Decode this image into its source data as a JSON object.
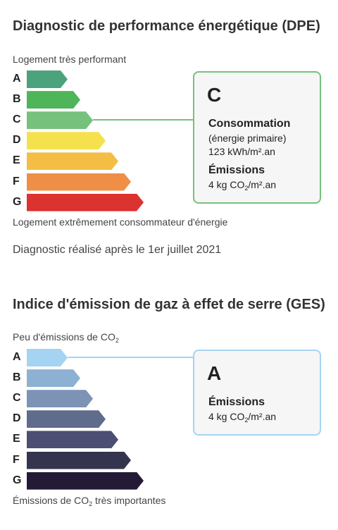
{
  "dpe": {
    "title": "Diagnostic de performance énergétique (DPE)",
    "top_label": "Logement très performant",
    "bottom_label": "Logement extrêmement consommateur d'énergie",
    "classes": [
      "A",
      "B",
      "C",
      "D",
      "E",
      "F",
      "G"
    ],
    "colors": [
      "#4aa37c",
      "#4fb559",
      "#76c17c",
      "#f5e14d",
      "#f3be43",
      "#ef8f47",
      "#dc3230"
    ],
    "highlight_color": "#76c17c",
    "current": {
      "letter": "C",
      "consumption_title": "Consommation",
      "consumption_sub": "(énergie primaire)",
      "consumption_value": "123 kWh/m².an",
      "emissions_title": "Émissions",
      "emissions_pre": "4 kg CO",
      "emissions_sub": "2",
      "emissions_post": "/m².an"
    },
    "diagnostic_note": "Diagnostic réalisé après le 1er juillet 2021"
  },
  "ges": {
    "title": "Indice d'émission de gaz à effet de serre (GES)",
    "top_label_pre": "Peu d'émissions de CO",
    "top_label_sub": "2",
    "bottom_label_pre": "Émissions de CO",
    "bottom_label_sub": "2",
    "bottom_label_post": " très importantes",
    "classes": [
      "A",
      "B",
      "C",
      "D",
      "E",
      "F",
      "G"
    ],
    "colors": [
      "#a4d4f2",
      "#8db1d2",
      "#7c93b6",
      "#5f6c8b",
      "#4c4f73",
      "#35344f",
      "#251a36"
    ],
    "highlight_color": "#a4d4f2",
    "current": {
      "letter": "A",
      "emissions_title": "Émissions",
      "emissions_pre": "4 kg CO",
      "emissions_sub": "2",
      "emissions_post": "/m².an"
    }
  }
}
